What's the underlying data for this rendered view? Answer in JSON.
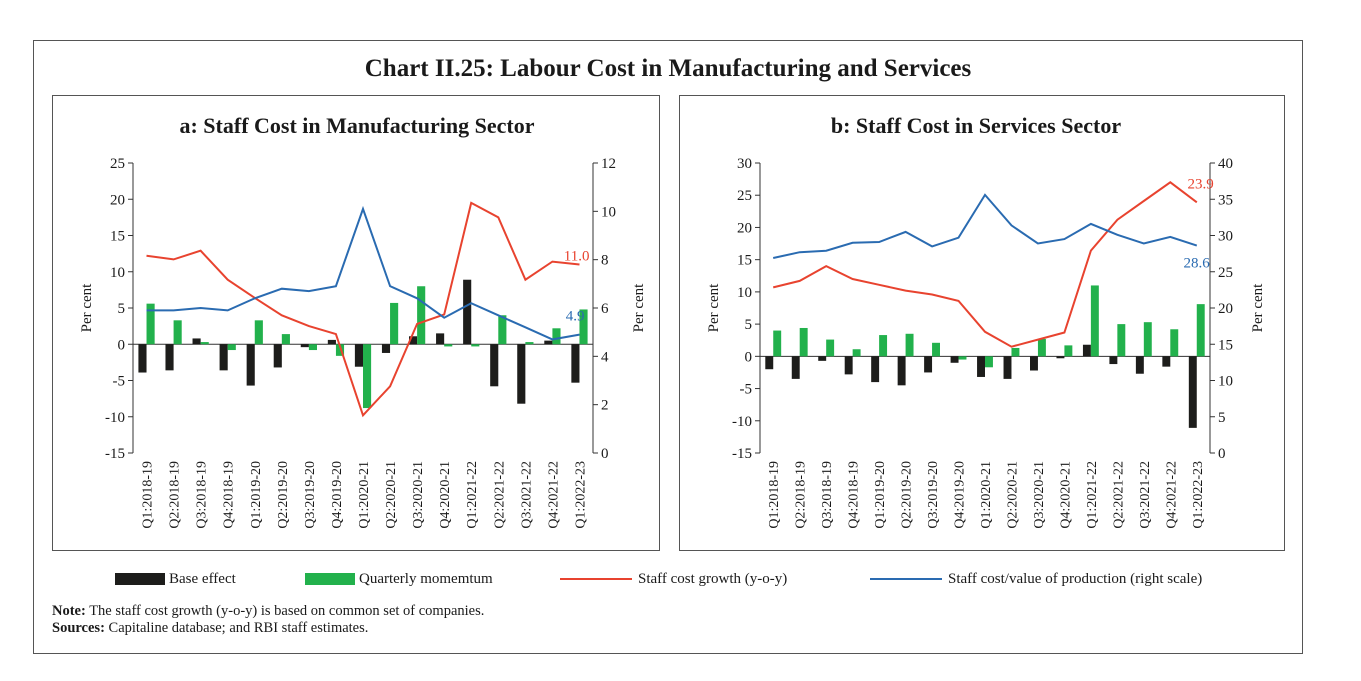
{
  "title": "Chart II.25: Labour Cost in Manufacturing and Services",
  "colors": {
    "base": "#1d1d1b",
    "momentum": "#22b14c",
    "growth": "#e8432f",
    "ratio": "#2a6bb1"
  },
  "legend": {
    "base": "Base effect",
    "momentum": "Quarterly momemtum",
    "growth": "Staff cost growth (y-o-y)",
    "ratio": "Staff cost/value of production (right scale)"
  },
  "note_label": "Note:",
  "note_text": "The staff cost growth (y-o-y) is based on common set of companies.",
  "sources_label": "Sources:",
  "sources_text": "Capitaline database; and RBI staff estimates.",
  "chart_data": [
    {
      "type": "bar+line",
      "title": "a: Staff Cost in Manufacturing Sector",
      "ylabel": "Per cent",
      "y2label": "Per cent",
      "ylim": [
        -15,
        25
      ],
      "y_ticks": [
        "25",
        "20",
        "15",
        "10",
        "5",
        "0",
        "-5",
        "-10",
        "-15"
      ],
      "y2lim": [
        0,
        12
      ],
      "y2_ticks": [
        "12",
        "10",
        "8",
        "6",
        "4",
        "2",
        "0"
      ],
      "categories": [
        "Q1:2018-19",
        "Q2:2018-19",
        "Q3:2018-19",
        "Q4:2018-19",
        "Q1:2019-20",
        "Q2:2019-20",
        "Q3:2019-20",
        "Q4:2019-20",
        "Q1:2020-21",
        "Q2:2020-21",
        "Q3:2020-21",
        "Q4:2020-21",
        "Q1:2021-22",
        "Q2:2021-22",
        "Q3:2021-22",
        "Q4:2021-22",
        "Q1:2022-23"
      ],
      "series": [
        {
          "name": "Base effect",
          "kind": "bar",
          "axis": "left",
          "values": [
            -3.9,
            -3.6,
            0.8,
            -3.6,
            -5.7,
            -3.2,
            -0.4,
            0.6,
            -3.1,
            -1.2,
            1.1,
            1.5,
            8.9,
            -5.8,
            -8.2,
            0.5,
            -5.3
          ]
        },
        {
          "name": "Quarterly momemtum",
          "kind": "bar",
          "axis": "left",
          "values": [
            5.6,
            3.3,
            0.3,
            -0.8,
            3.3,
            1.4,
            -0.8,
            -1.6,
            -8.8,
            5.7,
            8.0,
            -0.3,
            -0.3,
            4.0,
            0.3,
            2.2,
            4.8
          ]
        },
        {
          "name": "Staff cost growth (y-o-y)",
          "kind": "line",
          "axis": "left",
          "values": [
            12.2,
            11.7,
            12.9,
            8.9,
            6.4,
            4.0,
            2.5,
            1.4,
            -9.8,
            -5.8,
            2.8,
            4.1,
            19.5,
            17.5,
            8.9,
            11.4,
            11.0
          ]
        },
        {
          "name": "Staff cost/value of production (right scale)",
          "kind": "line",
          "axis": "right",
          "values": [
            5.9,
            5.9,
            6.0,
            5.9,
            6.4,
            6.8,
            6.7,
            6.9,
            10.1,
            6.9,
            6.4,
            5.6,
            6.2,
            5.7,
            5.2,
            4.7,
            4.9
          ]
        }
      ],
      "end_labels": {
        "growth": "11.0",
        "ratio": "4.9"
      }
    },
    {
      "type": "bar+line",
      "title": "b: Staff Cost in Services Sector",
      "ylabel": "Per cent",
      "y2label": "Per cent",
      "ylim": [
        -15,
        30
      ],
      "y_ticks": [
        "30",
        "25",
        "20",
        "15",
        "10",
        "5",
        "0",
        "-5",
        "-10",
        "-15"
      ],
      "y2lim": [
        0,
        40
      ],
      "y2_ticks": [
        "40",
        "35",
        "30",
        "25",
        "20",
        "15",
        "10",
        "5",
        "0"
      ],
      "categories": [
        "Q1:2018-19",
        "Q2:2018-19",
        "Q3:2018-19",
        "Q4:2018-19",
        "Q1:2019-20",
        "Q2:2019-20",
        "Q3:2019-20",
        "Q4:2019-20",
        "Q1:2020-21",
        "Q2:2020-21",
        "Q3:2020-21",
        "Q4:2020-21",
        "Q1:2021-22",
        "Q2:2021-22",
        "Q3:2021-22",
        "Q4:2021-22",
        "Q1:2022-23"
      ],
      "series": [
        {
          "name": "Base effect",
          "kind": "bar",
          "axis": "left",
          "values": [
            -2.0,
            -3.5,
            -0.7,
            -2.8,
            -4.0,
            -4.5,
            -2.5,
            -1.0,
            -3.2,
            -3.5,
            -2.2,
            -0.3,
            1.8,
            -1.2,
            -2.7,
            -1.6,
            -11.1
          ]
        },
        {
          "name": "Quarterly momemtum",
          "kind": "bar",
          "axis": "left",
          "values": [
            4.0,
            4.4,
            2.6,
            1.1,
            3.3,
            3.5,
            2.1,
            -0.5,
            -1.7,
            1.3,
            2.7,
            1.7,
            11.0,
            5.0,
            5.3,
            4.2,
            8.1
          ]
        },
        {
          "name": "Staff cost growth (y-o-y)",
          "kind": "line",
          "axis": "left",
          "values": [
            10.7,
            11.7,
            14.0,
            12.0,
            11.1,
            10.2,
            9.6,
            8.6,
            3.8,
            1.5,
            2.6,
            3.7,
            16.4,
            21.2,
            24.1,
            27.0,
            23.9
          ]
        },
        {
          "name": "Staff cost/value of production (right scale)",
          "kind": "line",
          "axis": "right",
          "values": [
            26.9,
            27.7,
            27.9,
            29.0,
            29.1,
            30.5,
            28.5,
            29.7,
            35.6,
            31.4,
            28.9,
            29.5,
            31.6,
            30.1,
            28.9,
            29.8,
            28.6
          ]
        }
      ],
      "end_labels": {
        "growth": "23.9",
        "ratio": "28.6"
      }
    }
  ]
}
